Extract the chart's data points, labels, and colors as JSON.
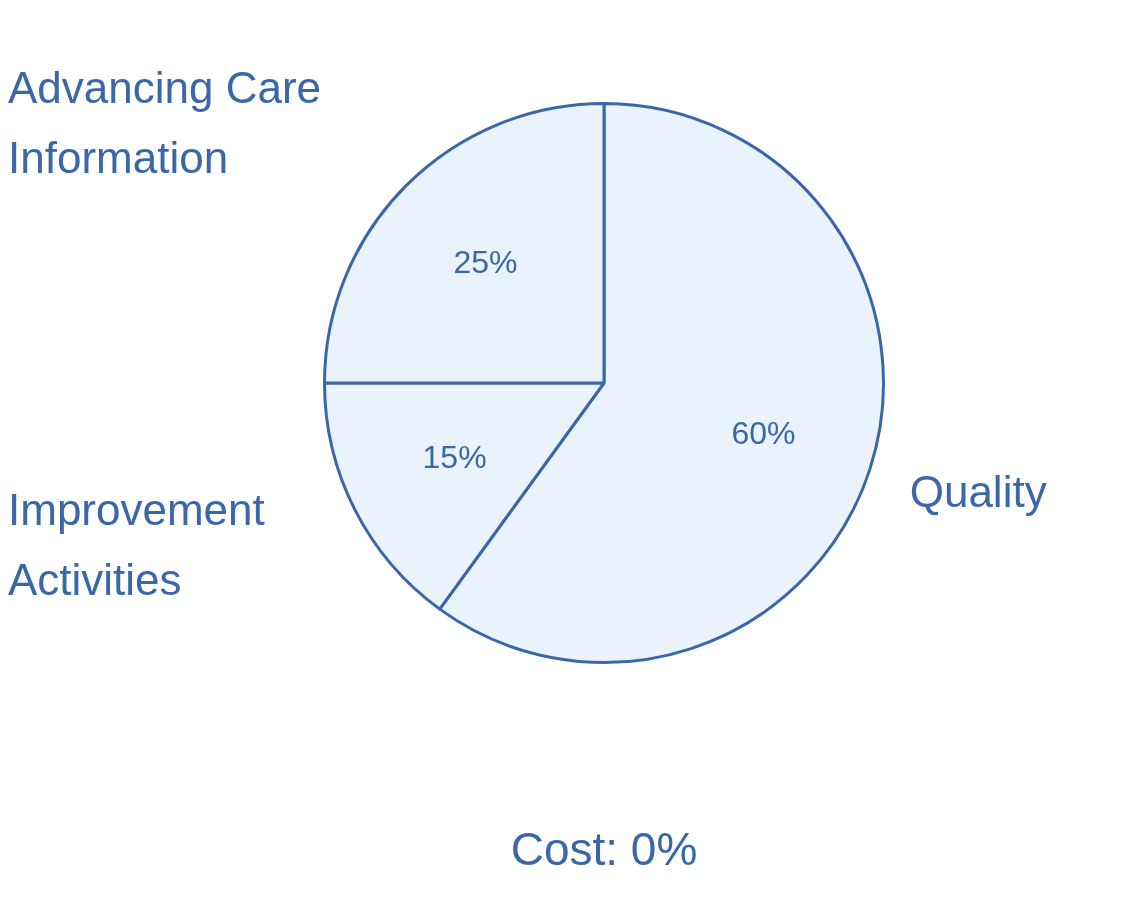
{
  "chart_data": {
    "type": "pie",
    "categories": [
      "Quality",
      "Improvement Activities",
      "Advancing Care Information"
    ],
    "values": [
      60,
      15,
      25
    ],
    "value_labels": [
      "60%",
      "15%",
      "25%"
    ],
    "colors": [
      "#eaf2fb",
      "#eaf2fb",
      "#eaf2fb"
    ],
    "annotations": [
      "Cost: 0%"
    ],
    "legend": false
  }
}
